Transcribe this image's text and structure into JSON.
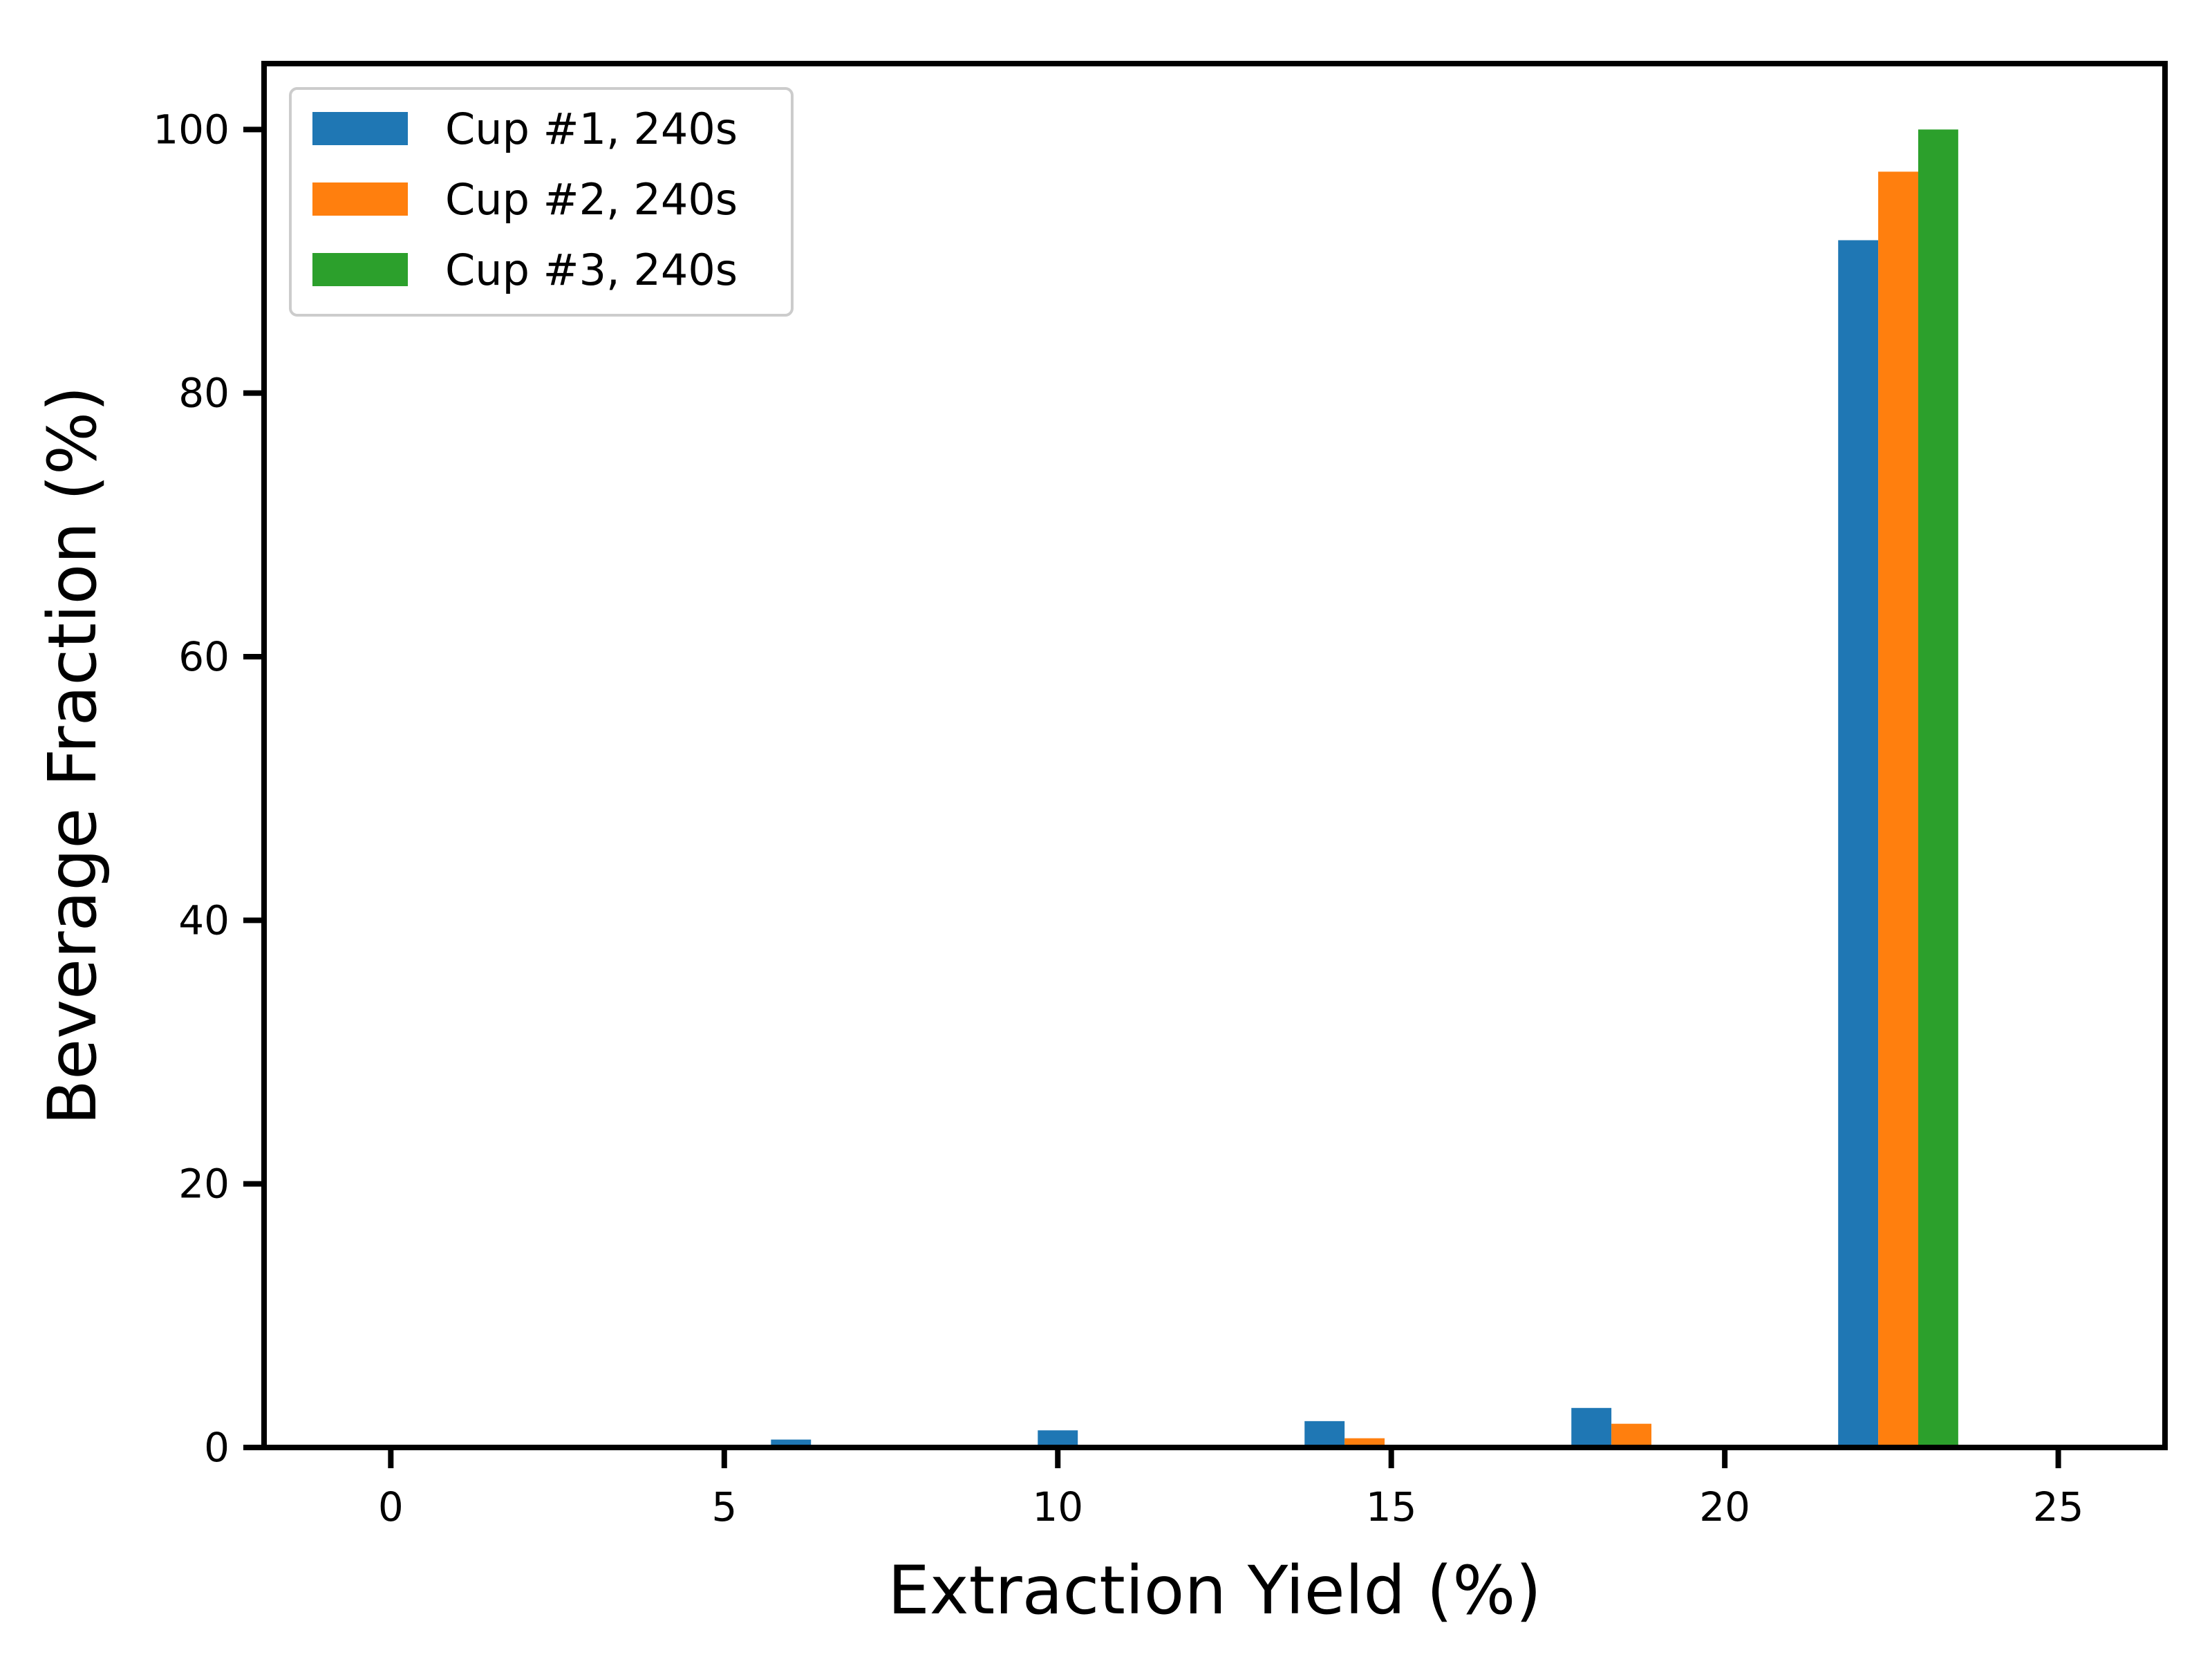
{
  "chart_data": {
    "type": "bar",
    "title": "",
    "xlabel": "Extraction Yield (%)",
    "ylabel": "Beverage Fraction (%)",
    "xlim": [
      -1.9,
      26.6
    ],
    "ylim": [
      0,
      105
    ],
    "xticks": [
      0,
      5,
      10,
      15,
      20,
      25
    ],
    "yticks": [
      0,
      20,
      40,
      60,
      80,
      100
    ],
    "grid": false,
    "legend_position": "top-left",
    "bar_width": 0.6,
    "series": [
      {
        "name": "Cup #1, 240s",
        "color": "#1f77b4",
        "points": [
          {
            "x": 4.0,
            "y": 0.2
          },
          {
            "x": 6.0,
            "y": 0.6
          },
          {
            "x": 10.0,
            "y": 1.3
          },
          {
            "x": 14.0,
            "y": 2.0
          },
          {
            "x": 18.0,
            "y": 3.0
          },
          {
            "x": 22.0,
            "y": 91.6
          }
        ]
      },
      {
        "name": "Cup #2, 240s",
        "color": "#ff7f0e",
        "points": [
          {
            "x": 14.6,
            "y": 0.7
          },
          {
            "x": 18.6,
            "y": 1.8
          },
          {
            "x": 22.6,
            "y": 96.8
          }
        ]
      },
      {
        "name": "Cup #3, 240s",
        "color": "#2ca02c",
        "points": [
          {
            "x": 23.2,
            "y": 100.0
          }
        ]
      }
    ]
  }
}
